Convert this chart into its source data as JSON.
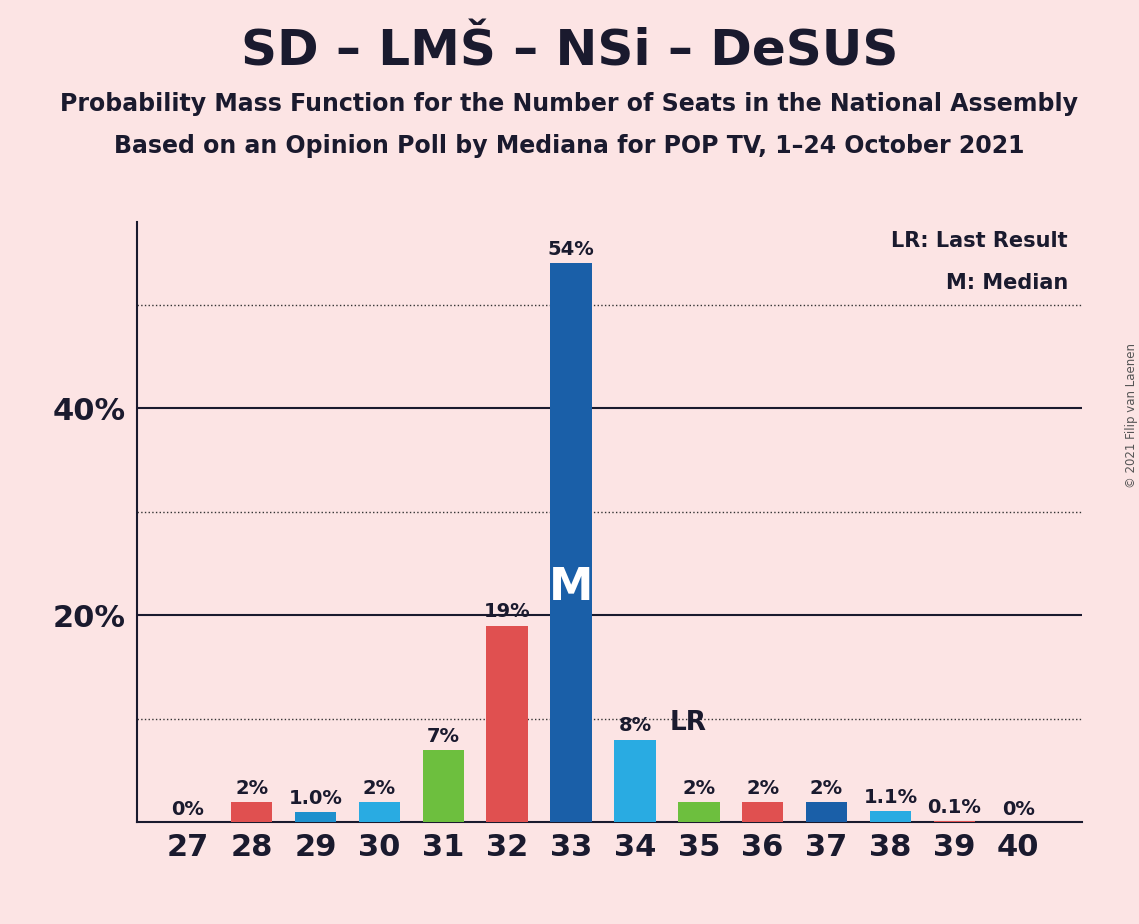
{
  "title": "SD – LMŠ – NSi – DeSUS",
  "subtitle1": "Probability Mass Function for the Number of Seats in the National Assembly",
  "subtitle2": "Based on an Opinion Poll by Mediana for POP TV, 1–24 October 2021",
  "copyright": "© 2021 Filip van Laenen",
  "seats": [
    27,
    28,
    29,
    30,
    31,
    32,
    33,
    34,
    35,
    36,
    37,
    38,
    39,
    40
  ],
  "probabilities": [
    0.0,
    2.0,
    1.0,
    2.0,
    7.0,
    19.0,
    54.0,
    8.0,
    2.0,
    2.0,
    2.0,
    1.1,
    0.1,
    0.0
  ],
  "label_texts": [
    "0%",
    "2%",
    "1.0%",
    "2%",
    "7%",
    "19%",
    "54%",
    "8%",
    "2%",
    "2%",
    "2%",
    "1.1%",
    "0.1%",
    "0%"
  ],
  "bar_colors": [
    "#e05050",
    "#e05050",
    "#1e90cd",
    "#29abe2",
    "#6dbf3e",
    "#e05050",
    "#1a5fa8",
    "#29abe2",
    "#6dbf3e",
    "#e05050",
    "#1a5fa8",
    "#29abe2",
    "#e05050",
    "#e05050"
  ],
  "median_seat": 33,
  "lr_seat": 34,
  "background_color": "#fce4e4",
  "ylim_max": 58,
  "dotted_lines": [
    10,
    30,
    50
  ],
  "solid_lines": [
    20,
    40
  ],
  "legend_lr": "LR: Last Result",
  "legend_m": "M: Median",
  "title_fontsize": 36,
  "subtitle_fontsize": 17,
  "axis_fontsize": 22,
  "label_fontsize": 14
}
